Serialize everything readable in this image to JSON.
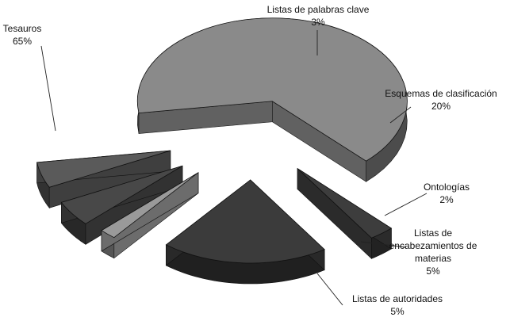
{
  "chart_data": {
    "type": "pie",
    "style": "3d-exploded",
    "legend": "none",
    "slices": [
      {
        "label": "Tesauros",
        "value": 65,
        "value_label": "65%",
        "color": "#8a8a8a"
      },
      {
        "label": "Listas de palabras clave",
        "value": 3,
        "value_label": "3%",
        "color": "#3d3d3d"
      },
      {
        "label": "Esquemas de clasificación",
        "value": 20,
        "value_label": "20%",
        "color": "#3b3b3b"
      },
      {
        "label": "Ontologías",
        "value": 2,
        "value_label": "2%",
        "color": "#9a9a9a"
      },
      {
        "label": "Listas de encabezamientos de materias",
        "label_lines": [
          "Listas de",
          "encabezamientos de",
          "materias"
        ],
        "value": 5,
        "value_label": "5%",
        "color": "#484848"
      },
      {
        "label": "Listas de autoridades",
        "value": 5,
        "value_label": "5%",
        "color": "#5a5a5a"
      }
    ]
  }
}
